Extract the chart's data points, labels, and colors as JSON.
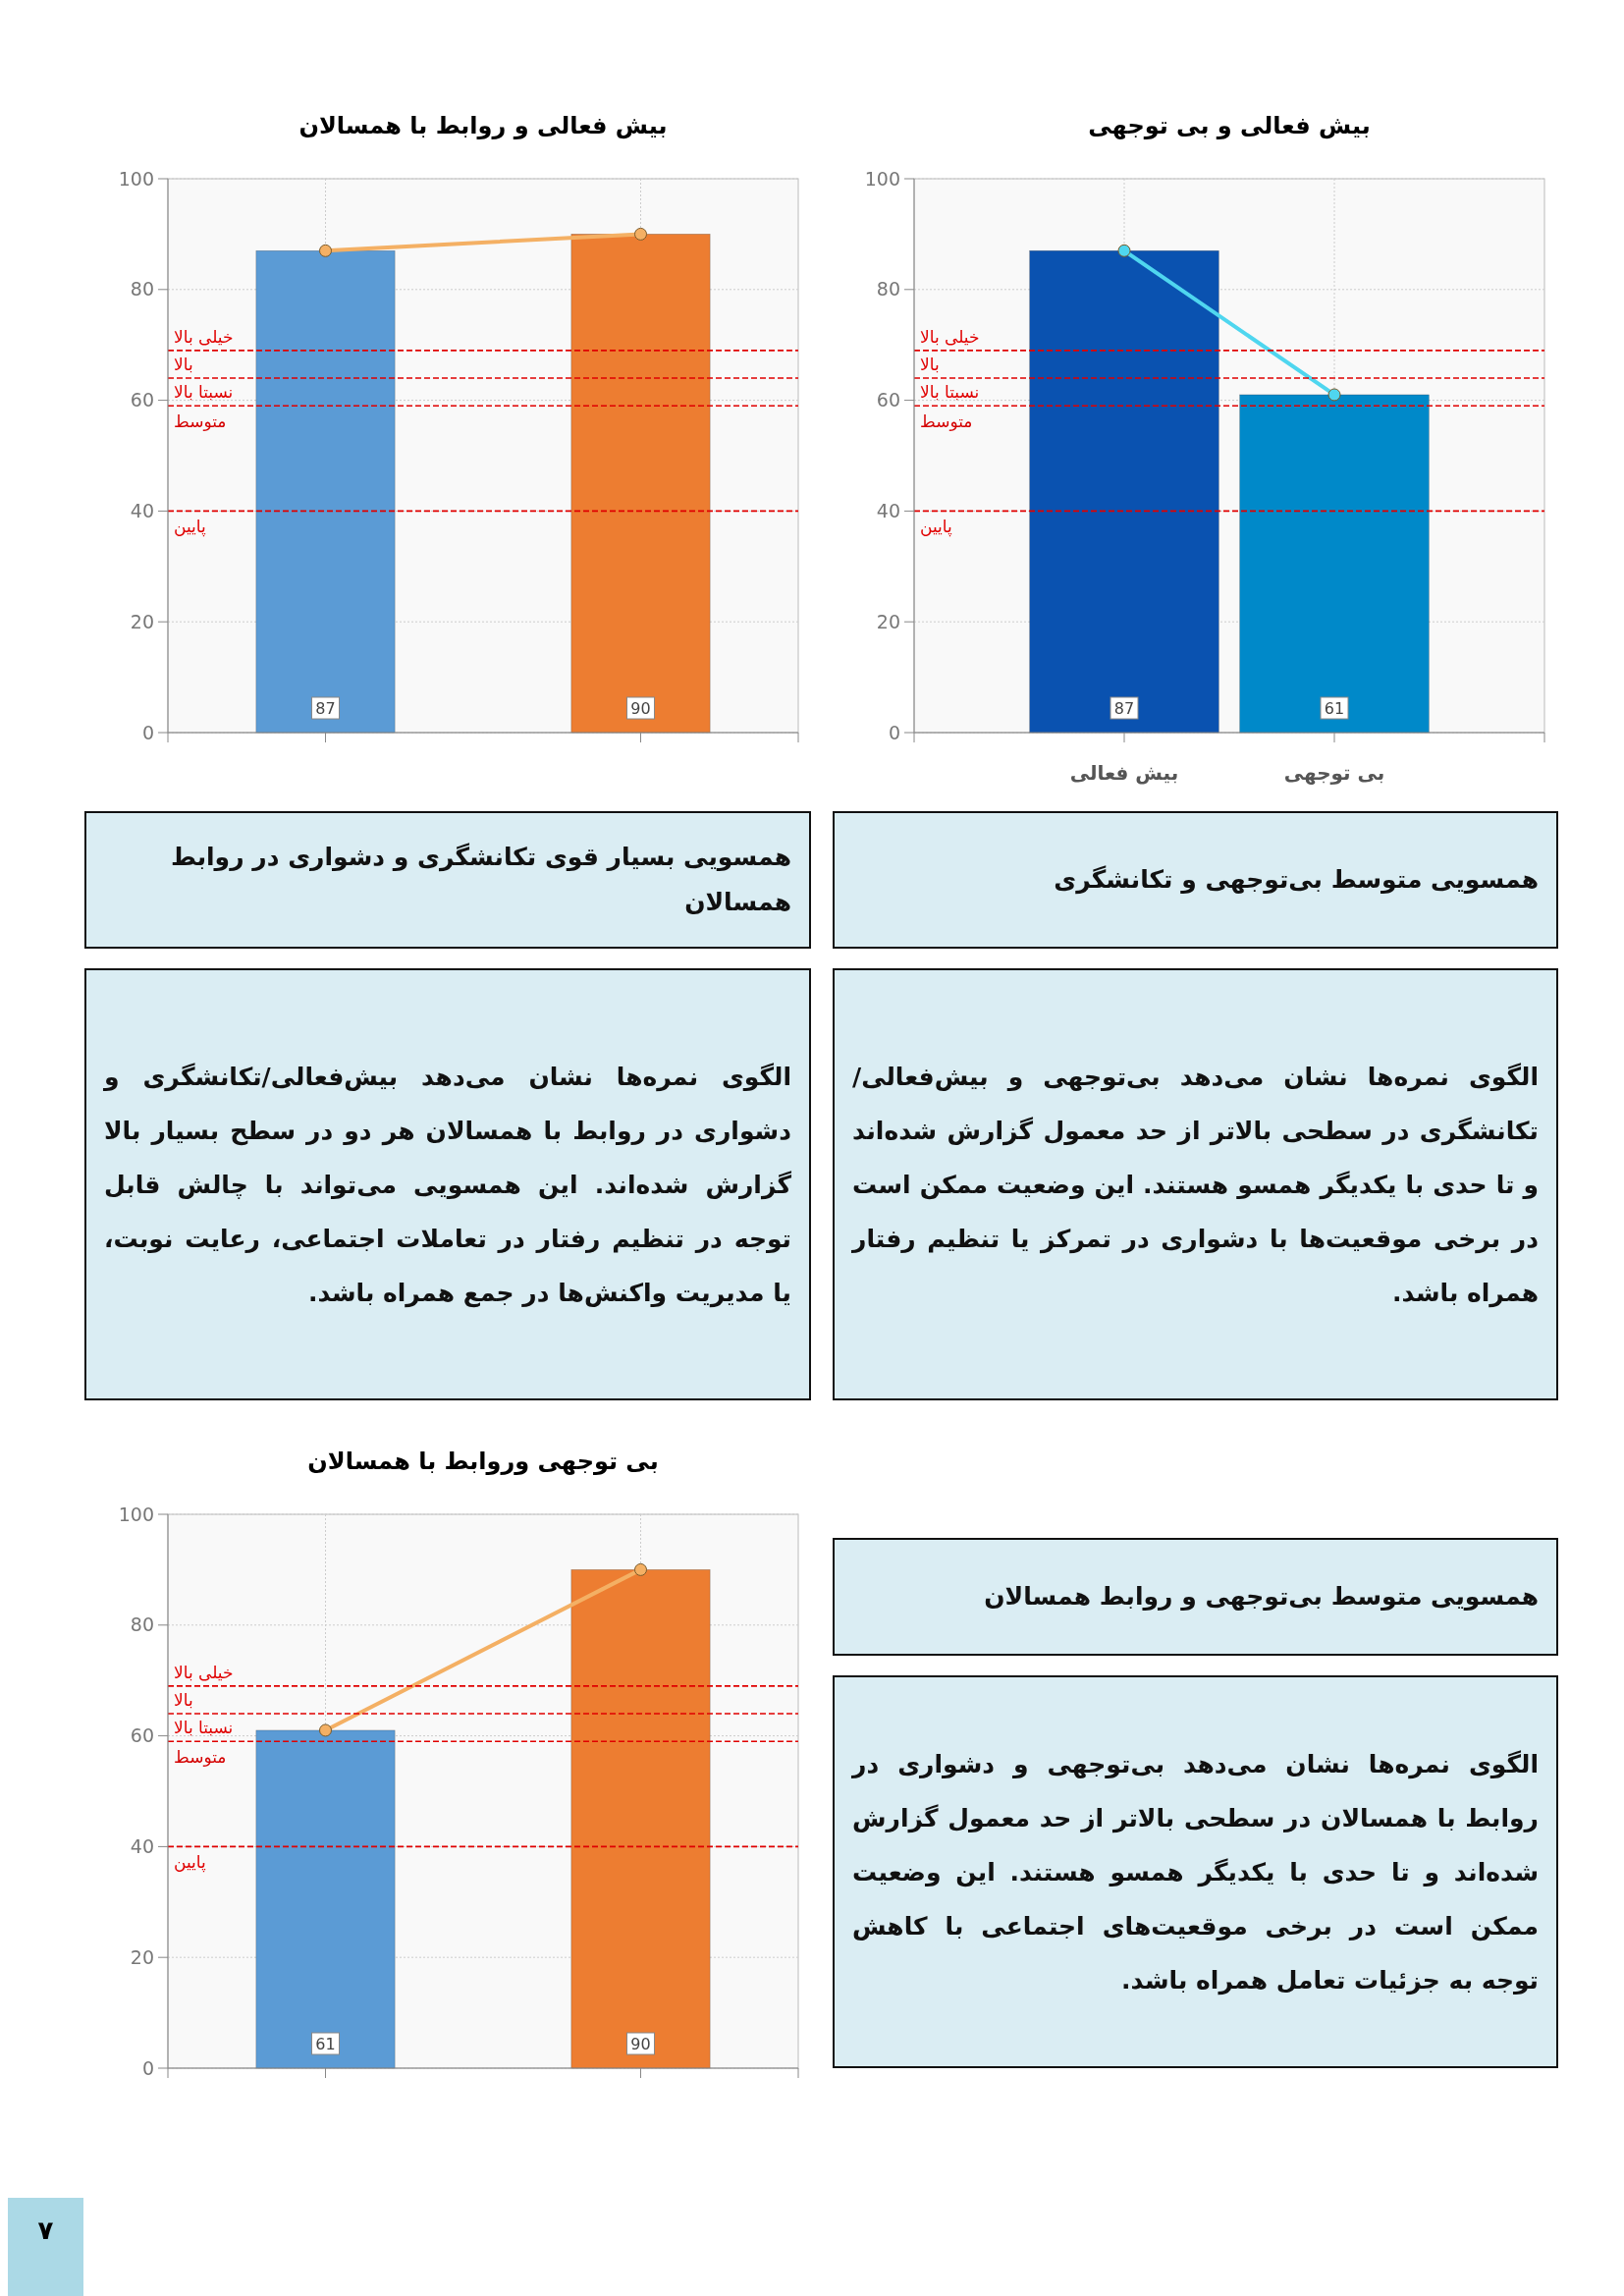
{
  "chart_data": [
    {
      "type": "bar",
      "title": "بیش فعالی و بی توجهی",
      "categories": [
        "بیش فعالی",
        "بی توجهی"
      ],
      "series": [
        {
          "type": "bar",
          "values": [
            87,
            61
          ],
          "colors": [
            "#0a52b0",
            "#0089c9"
          ],
          "value_labels": [
            "87",
            "61"
          ]
        },
        {
          "type": "line",
          "values": [
            87,
            61
          ],
          "color": "#4fd6ef",
          "marker": "circle"
        }
      ],
      "ylim": [
        0,
        100
      ],
      "yticks": [
        0,
        20,
        40,
        60,
        80,
        100
      ],
      "grid": true,
      "ref_lines": [
        {
          "axis": "y",
          "value": 69,
          "label": "خیلی بالا",
          "color": "#e00000",
          "line_style": "dashed"
        },
        {
          "axis": "y",
          "value": 64,
          "label": "بالا",
          "color": "#e00000",
          "line_style": "dashed"
        },
        {
          "axis": "y",
          "value": 59,
          "label": "نسبتا بالا",
          "color": "#e00000",
          "line_style": "dashed"
        },
        {
          "axis": "y",
          "value": 40,
          "label": "پایین",
          "color": "#e00000",
          "line_style": "dashed"
        }
      ],
      "annotations": [
        "متوسط"
      ]
    },
    {
      "type": "bar",
      "title": "بیش فعالی و روابط با همسالان",
      "categories": [
        null,
        null
      ],
      "series": [
        {
          "type": "bar",
          "values": [
            87,
            90
          ],
          "colors": [
            "#5b9bd5",
            "#ed7d31"
          ],
          "value_labels": [
            "87",
            "90"
          ]
        },
        {
          "type": "line",
          "values": [
            87,
            90
          ],
          "color": "#f4b064",
          "marker": "circle"
        }
      ],
      "ylim": [
        0,
        100
      ],
      "yticks": [
        0,
        20,
        40,
        60,
        80,
        100
      ],
      "grid": true,
      "ref_lines": [
        {
          "axis": "y",
          "value": 69,
          "label": "خیلی بالا",
          "color": "#e00000",
          "line_style": "dashed"
        },
        {
          "axis": "y",
          "value": 64,
          "label": "بالا",
          "color": "#e00000",
          "line_style": "dashed"
        },
        {
          "axis": "y",
          "value": 59,
          "label": "نسبتا بالا",
          "color": "#e00000",
          "line_style": "dashed"
        },
        {
          "axis": "y",
          "value": 40,
          "label": "پایین",
          "color": "#e00000",
          "line_style": "dashed"
        }
      ],
      "annotations": [
        "متوسط"
      ]
    },
    {
      "type": "other",
      "title": "همسویی متوسط بی‌توجهی و تکانشگری",
      "annotations": [
        "الگوی نمره‌ها نشان می‌دهد بی‌توجهی و بیش‌فعالی/تکانشگری در سطحی بالاتر از حد معمول گزارش شده‌اند و تا حدی با یکدیگر همسو هستند. این وضعیت ممکن است در برخی موقعیت‌ها با دشواری در تمرکز یا تنظیم رفتار همراه باشد."
      ]
    },
    {
      "type": "other",
      "title": "همسویی بسیار قوی تکانشگری و دشواری در روابط همسالان",
      "annotations": [
        "الگوی نمره‌ها نشان می‌دهد بیش‌فعالی/تکانشگری و دشواری در روابط با همسالان هر دو در سطح بسیار بالا گزارش شده‌اند. این همسویی می‌تواند با چالش قابل توجه در تنظیم رفتار در تعاملات اجتماعی، رعایت نوبت، یا مدیریت واکنش‌ها در جمع همراه باشد."
      ]
    },
    {
      "type": "bar",
      "title": "بی توجهی وروابط با همسالان",
      "categories": [
        null,
        null
      ],
      "series": [
        {
          "type": "bar",
          "values": [
            61,
            90
          ],
          "colors": [
            "#5b9bd5",
            "#ed7d31"
          ],
          "value_labels": [
            "61",
            "90"
          ]
        },
        {
          "type": "line",
          "values": [
            61,
            90
          ],
          "color": "#f4b064",
          "marker": "circle"
        }
      ],
      "ylim": [
        0,
        100
      ],
      "yticks": [
        0,
        20,
        40,
        60,
        80,
        100
      ],
      "grid": true,
      "ref_lines": [
        {
          "axis": "y",
          "value": 69,
          "label": "خیلی بالا",
          "color": "#e00000",
          "line_style": "dashed"
        },
        {
          "axis": "y",
          "value": 64,
          "label": "بالا",
          "color": "#e00000",
          "line_style": "dashed"
        },
        {
          "axis": "y",
          "value": 59,
          "label": "نسبتا بالا",
          "color": "#e00000",
          "line_style": "dashed"
        },
        {
          "axis": "y",
          "value": 40,
          "label": "پایین",
          "color": "#e00000",
          "line_style": "dashed"
        }
      ],
      "annotations": [
        "متوسط"
      ]
    },
    {
      "type": "other",
      "title": "همسویی متوسط بی‌توجهی و روابط همسالان",
      "annotations": [
        "الگوی نمره‌ها نشان می‌دهد بی‌توجهی و دشواری در روابط با همسالان در سطحی بالاتر از حد معمول گزارش شده‌اند و تا حدی با یکدیگر همسو هستند. این وضعیت ممکن است در برخی موقعیت‌های اجتماعی با کاهش توجه به جزئیات تعامل همراه باشد."
      ]
    },
    {
      "type": "other",
      "annotations": [
        "۷"
      ]
    }
  ]
}
